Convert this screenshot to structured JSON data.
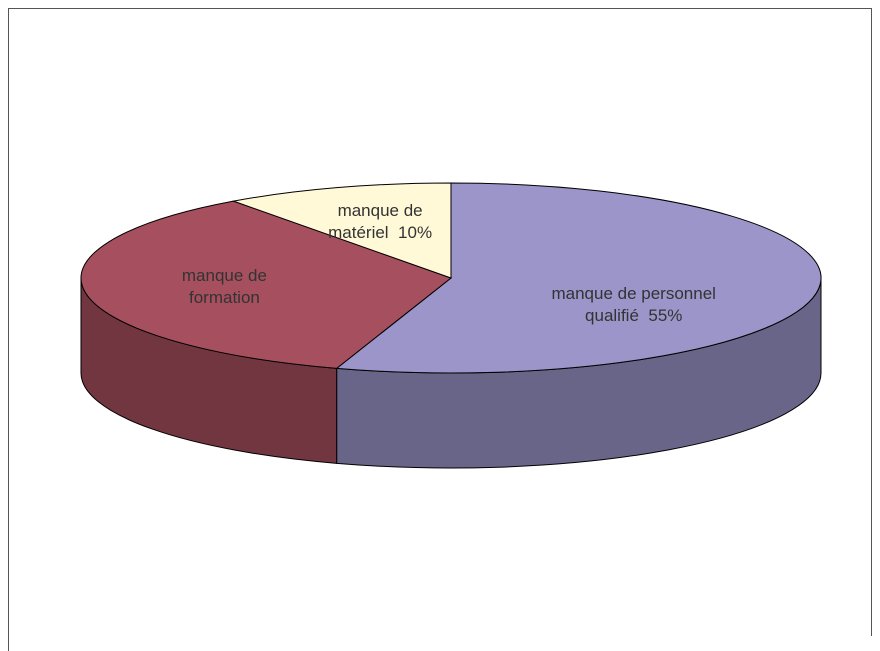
{
  "chart_data": {
    "type": "pie3d",
    "categories": [
      "manque de personnel qualifié",
      "manque de formation",
      "manque de matériel"
    ],
    "values": [
      55,
      35,
      10
    ],
    "value_labels": [
      "55%",
      null,
      "10%"
    ],
    "colors": [
      "#9b95c9",
      "#a64f5e",
      "#fff9d8"
    ]
  }
}
